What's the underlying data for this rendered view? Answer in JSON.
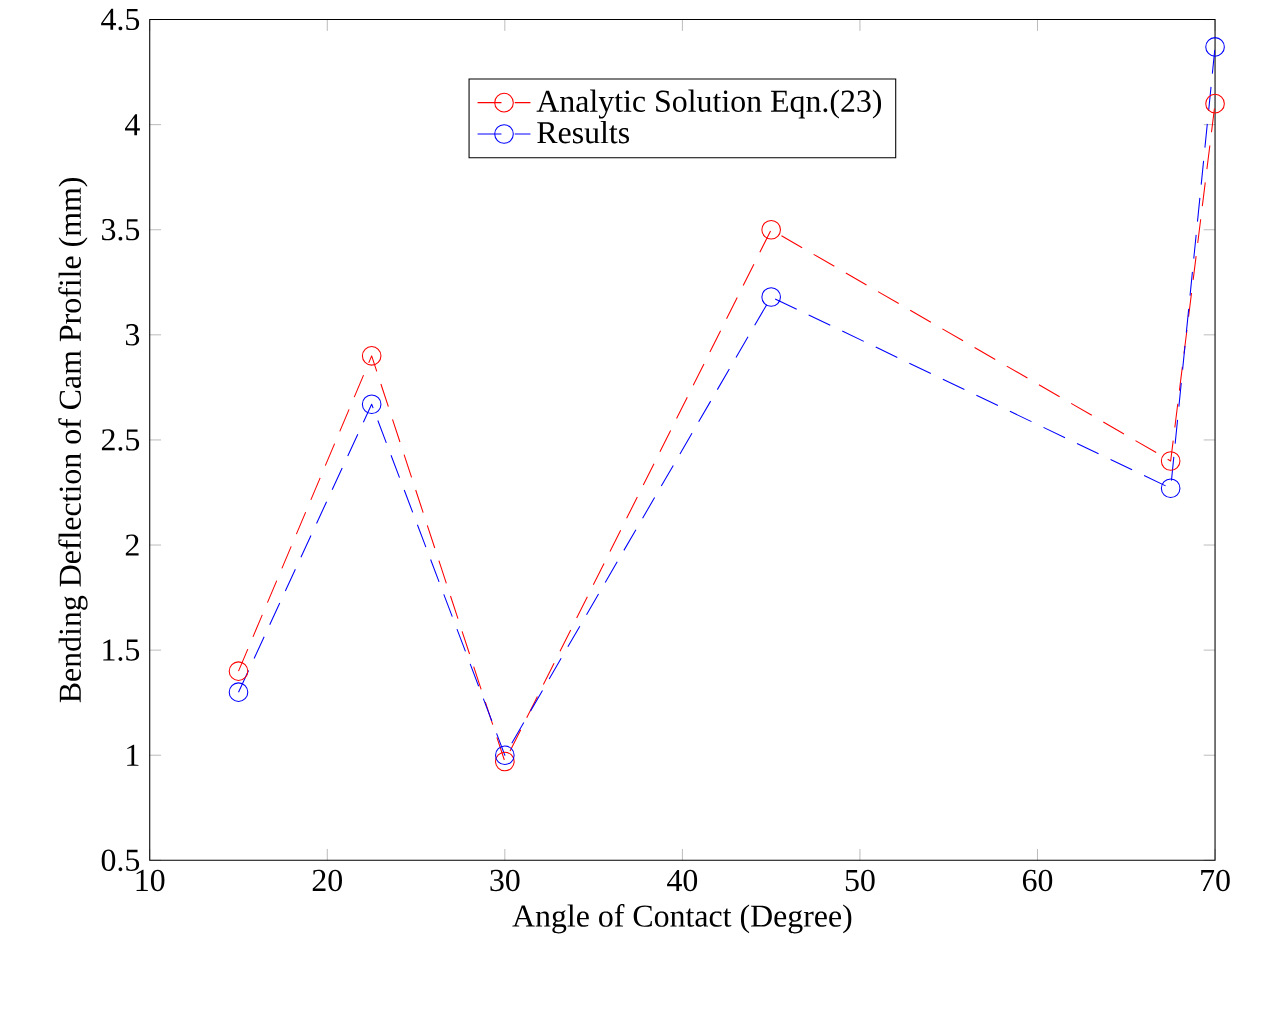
{
  "chart_data": {
    "type": "line",
    "xlabel": "Angle of Contact (Degree)",
    "ylabel": "Bending Deflection of Cam Profile (mm)",
    "x": [
      15,
      22.5,
      30,
      45,
      67.5,
      70
    ],
    "series": [
      {
        "name": "Analytic Solution Eqn.(23)",
        "color": "#ff0000",
        "values": [
          1.4,
          2.9,
          0.97,
          3.5,
          2.4,
          4.1
        ]
      },
      {
        "name": "Results",
        "color": "#0000ff",
        "values": [
          1.3,
          2.67,
          1.0,
          3.18,
          2.27,
          4.37
        ]
      }
    ],
    "xlim": [
      10,
      70
    ],
    "ylim": [
      0.5,
      4.5
    ],
    "xticks": [
      10,
      20,
      30,
      40,
      50,
      60,
      70
    ],
    "yticks": [
      0.5,
      1,
      1.5,
      2,
      2.5,
      3,
      3.5,
      4,
      4.5
    ],
    "grid": false,
    "legend": "top",
    "marker": "circle",
    "line_style": "dashed"
  }
}
